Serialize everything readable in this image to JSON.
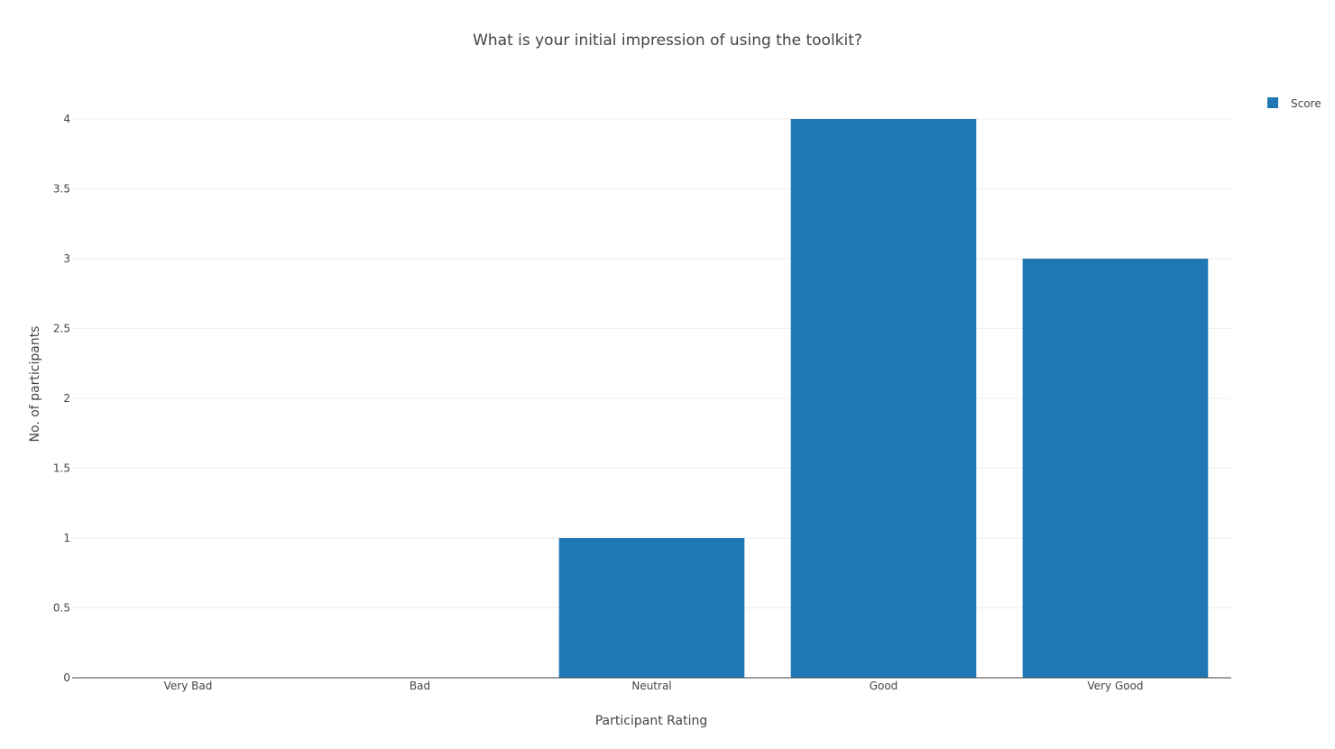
{
  "chart_data": {
    "type": "bar",
    "title": "What is your initial impression of using the toolkit?",
    "xlabel": "Participant Rating",
    "ylabel": "No. of participants",
    "categories": [
      "Very Bad",
      "Bad",
      "Neutral",
      "Good",
      "Very Good"
    ],
    "series": [
      {
        "name": "Score",
        "values": [
          0,
          0,
          1,
          4,
          3
        ],
        "color": "#1f77b4"
      }
    ],
    "ylim": [
      0,
      4
    ],
    "yticks": [
      "0",
      "0.5",
      "1",
      "1.5",
      "2",
      "2.5",
      "3",
      "3.5",
      "4"
    ],
    "grid": true,
    "legend_position": "top-right"
  }
}
